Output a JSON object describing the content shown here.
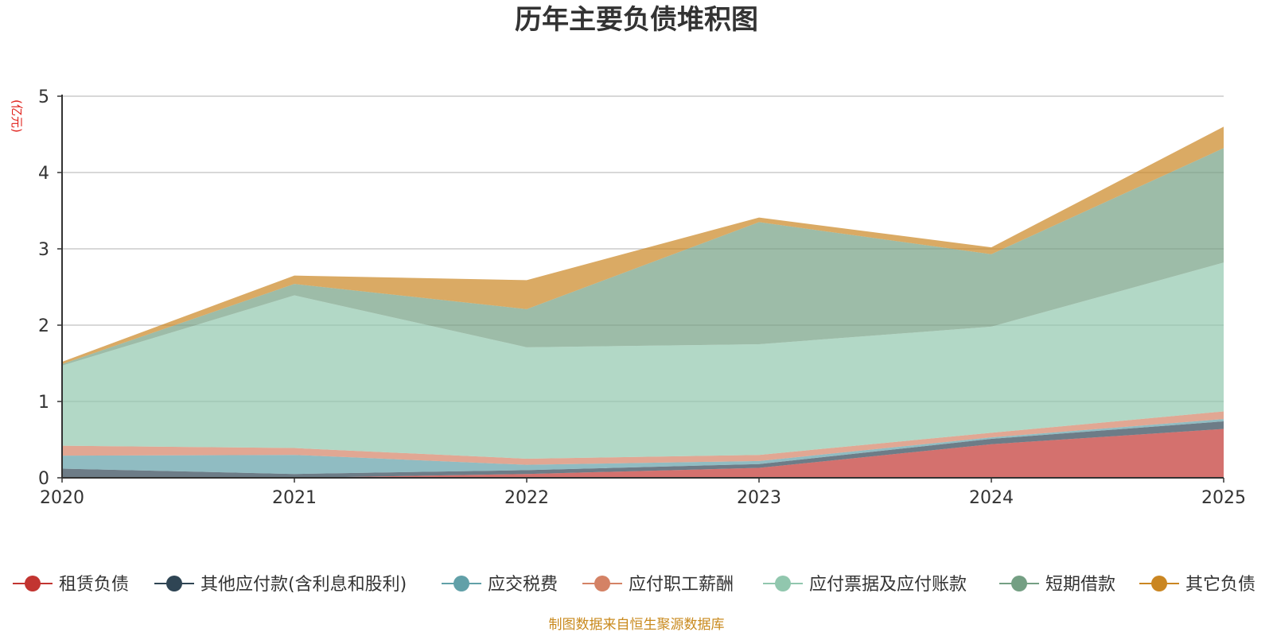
{
  "chart_data": {
    "type": "area",
    "stacked": true,
    "title": "历年主要负债堆积图",
    "unit_label": "(亿元)",
    "categories": [
      "2020",
      "2021",
      "2022",
      "2023",
      "2024",
      "2025"
    ],
    "ylim": [
      0,
      5
    ],
    "yticks": [
      "0",
      "1",
      "2",
      "3",
      "4",
      "5"
    ],
    "grid": true,
    "legend_position": "bottom",
    "series": [
      {
        "name": "租赁负债",
        "color": "#c23531",
        "values": [
          0.0,
          0.0,
          0.05,
          0.13,
          0.44,
          0.64
        ]
      },
      {
        "name": "其他应付款(含利息和股利)",
        "color": "#2f4554",
        "values": [
          0.12,
          0.05,
          0.05,
          0.05,
          0.07,
          0.1
        ]
      },
      {
        "name": "应交税费",
        "color": "#61a0a8",
        "values": [
          0.17,
          0.25,
          0.07,
          0.04,
          0.02,
          0.03
        ]
      },
      {
        "name": "应付职工薪酬",
        "color": "#d48265",
        "values": [
          0.13,
          0.09,
          0.08,
          0.08,
          0.06,
          0.1
        ]
      },
      {
        "name": "应付票据及应付账款",
        "color": "#91c7ae",
        "values": [
          1.05,
          2.0,
          1.46,
          1.45,
          1.39,
          1.95
        ]
      },
      {
        "name": "短期借款",
        "color": "#749f83",
        "values": [
          0.02,
          0.15,
          0.5,
          1.6,
          0.95,
          1.5
        ]
      },
      {
        "name": "其它负债",
        "color": "#ca8622",
        "values": [
          0.03,
          0.11,
          0.38,
          0.06,
          0.09,
          0.28
        ]
      }
    ]
  },
  "footer": {
    "source": "制图数据来自恒生聚源数据库"
  }
}
